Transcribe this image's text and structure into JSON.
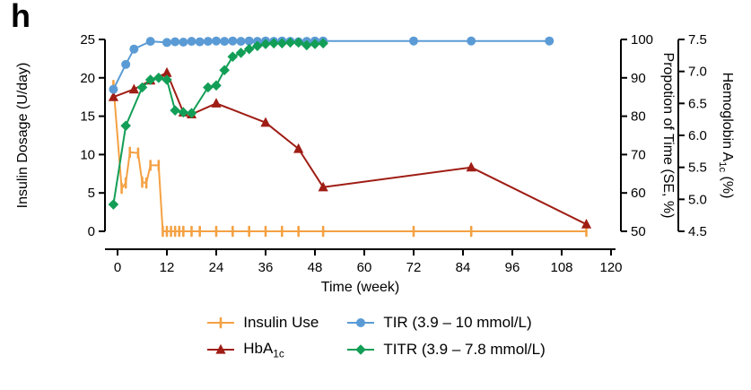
{
  "figure": {
    "panel_label": "h"
  },
  "chart_data": {
    "type": "line",
    "title": "",
    "grid": false,
    "x_axis": {
      "label": "Time (week)",
      "ticks": [
        0,
        12,
        24,
        36,
        48,
        60,
        72,
        84,
        96,
        108,
        120
      ],
      "range": [
        -4,
        120
      ]
    },
    "axes": {
      "left": {
        "label_parts": [
          {
            "t": "Insulin Dosage (U/day)"
          }
        ],
        "ticks": [
          0,
          5,
          10,
          15,
          20,
          25
        ],
        "tick_labels": [
          "0",
          "5",
          "10",
          "15",
          "20",
          "25"
        ],
        "range": [
          0,
          25
        ]
      },
      "percent": {
        "label_parts": [
          {
            "t": "Propotion of Time (SE, %)"
          }
        ],
        "ticks": [
          50,
          60,
          70,
          80,
          90,
          100
        ],
        "tick_labels": [
          "50",
          "60",
          "70",
          "80",
          "90",
          "100"
        ],
        "range": [
          50,
          100
        ]
      },
      "hba1c": {
        "label_parts": [
          {
            "t": "Hemoglobin A"
          },
          {
            "t": "1c",
            "sub": true
          },
          {
            "t": " (%)"
          }
        ],
        "ticks": [
          4.5,
          5,
          5.5,
          6,
          6.5,
          7,
          7.5
        ],
        "tick_labels": [
          "4.5",
          "5.0",
          "5.5",
          "6.0",
          "6.5",
          "7.0",
          "7.5"
        ],
        "range": [
          4.5,
          7.5
        ]
      }
    },
    "series": [
      {
        "id": "insulin-use",
        "name": "Insulin Use",
        "color": "#F4A143",
        "marker": "vtick",
        "axis": "left",
        "points": [
          [
            -1,
            19
          ],
          [
            1,
            5.6
          ],
          [
            2,
            6.3
          ],
          [
            3,
            10.3
          ],
          [
            5,
            10.2
          ],
          [
            6,
            6.4
          ],
          [
            7,
            6.3
          ],
          [
            8,
            8.6
          ],
          [
            10,
            8.6
          ],
          [
            11,
            0
          ],
          [
            12,
            0
          ],
          [
            13,
            0
          ],
          [
            14,
            0
          ],
          [
            15,
            0
          ],
          [
            16,
            0
          ],
          [
            18,
            0
          ],
          [
            20,
            0
          ],
          [
            24,
            0
          ],
          [
            28,
            0
          ],
          [
            32,
            0
          ],
          [
            36,
            0
          ],
          [
            40,
            0
          ],
          [
            44,
            0
          ],
          [
            50,
            0
          ],
          [
            72,
            0
          ],
          [
            86,
            0
          ],
          [
            114,
            0
          ]
        ]
      },
      {
        "id": "hba1c",
        "name": "HbA1c",
        "color": "#9F1D15",
        "marker": "triangle",
        "axis": "hba1c",
        "points": [
          [
            -1,
            6.6
          ],
          [
            4,
            6.72
          ],
          [
            8,
            6.86
          ],
          [
            12,
            6.98
          ],
          [
            16,
            6.36
          ],
          [
            18,
            6.33
          ],
          [
            24,
            6.5
          ],
          [
            36,
            6.2
          ],
          [
            44,
            5.79
          ],
          [
            50,
            5.19
          ],
          [
            86,
            5.5
          ],
          [
            114,
            4.61
          ]
        ]
      },
      {
        "id": "tir",
        "name": "TIR (3.9 – 10 mmol/L)",
        "color": "#5B9BD5",
        "marker": "circle",
        "axis": "percent",
        "points": [
          [
            -1,
            87
          ],
          [
            2,
            93.5
          ],
          [
            4,
            97.5
          ],
          [
            8,
            99.5
          ],
          [
            12,
            99.2
          ],
          [
            14,
            99.4
          ],
          [
            16,
            99.3
          ],
          [
            18,
            99.5
          ],
          [
            20,
            99.4
          ],
          [
            22,
            99.5
          ],
          [
            24,
            99.6
          ],
          [
            26,
            99.5
          ],
          [
            28,
            99.6
          ],
          [
            30,
            99.5
          ],
          [
            32,
            99.6
          ],
          [
            34,
            99.5
          ],
          [
            36,
            99.6
          ],
          [
            38,
            99.5
          ],
          [
            40,
            99.6
          ],
          [
            42,
            99.5
          ],
          [
            44,
            99.4
          ],
          [
            46,
            99.5
          ],
          [
            48,
            99.6
          ],
          [
            50,
            99.6
          ],
          [
            72,
            99.6
          ],
          [
            86,
            99.6
          ],
          [
            105,
            99.6
          ]
        ]
      },
      {
        "id": "titr",
        "name": "TITR (3.9 – 7.8 mmol/L)",
        "color": "#129E56",
        "marker": "diamond",
        "axis": "percent",
        "points": [
          [
            -1,
            57
          ],
          [
            2,
            77.5
          ],
          [
            6,
            87.5
          ],
          [
            8,
            89.5
          ],
          [
            10,
            90
          ],
          [
            12,
            89.5
          ],
          [
            14,
            81.5
          ],
          [
            16,
            81
          ],
          [
            18,
            80.8
          ],
          [
            22,
            87.5
          ],
          [
            24,
            88
          ],
          [
            26,
            92
          ],
          [
            28,
            95.5
          ],
          [
            30,
            96.5
          ],
          [
            32,
            97.5
          ],
          [
            34,
            98.3
          ],
          [
            36,
            98.8
          ],
          [
            38,
            99
          ],
          [
            40,
            99
          ],
          [
            42,
            99.2
          ],
          [
            44,
            99.2
          ],
          [
            46,
            98.5
          ],
          [
            48,
            98.8
          ],
          [
            50,
            99
          ]
        ]
      }
    ]
  },
  "legend": {
    "items": [
      {
        "id": "insulin-use",
        "label_parts": [
          {
            "t": "Insulin Use"
          }
        ],
        "marker": "vtick",
        "color": "#F4A143"
      },
      {
        "id": "tir",
        "label_parts": [
          {
            "t": "TIR (3.9 – 10 mmol/L)"
          }
        ],
        "marker": "circle",
        "color": "#5B9BD5"
      },
      {
        "id": "hba1c",
        "label_parts": [
          {
            "t": "HbA"
          },
          {
            "t": "1c",
            "sub": true
          }
        ],
        "marker": "triangle",
        "color": "#9F1D15"
      },
      {
        "id": "titr",
        "label_parts": [
          {
            "t": "TITR (3.9 – 7.8 mmol/L)"
          }
        ],
        "marker": "diamond",
        "color": "#129E56"
      }
    ]
  }
}
